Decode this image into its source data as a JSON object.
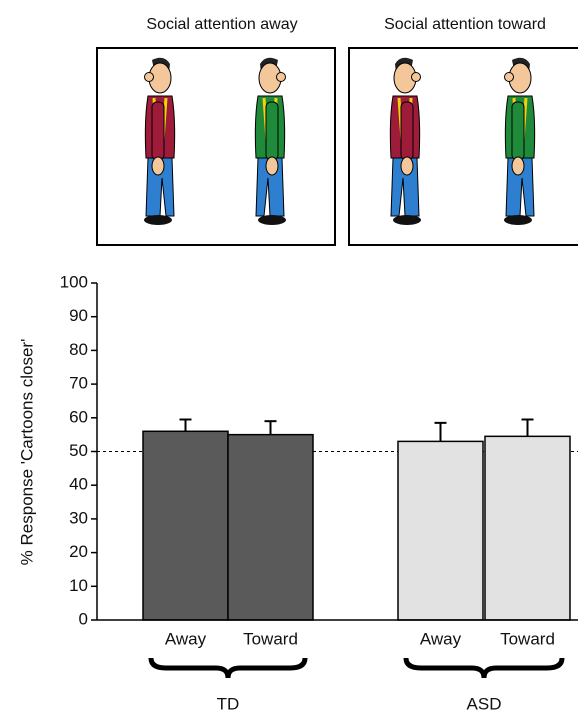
{
  "panels": [
    {
      "title": "Social attention away"
    },
    {
      "title": "Social attention toward"
    }
  ],
  "chart_data": {
    "type": "bar",
    "y_label": "% Response 'Cartoons closer'",
    "categories": [
      "Away",
      "Toward",
      "Away",
      "Toward"
    ],
    "groups": [
      {
        "label": "TD",
        "color": "#5a5a5a"
      },
      {
        "label": "ASD",
        "color": "#e2e2e2"
      }
    ],
    "values": [
      56,
      55,
      53,
      54.5
    ],
    "errors": [
      3.5,
      4,
      5.5,
      5
    ],
    "reference_line": 50,
    "ylim": [
      0,
      100
    ],
    "yticks": [
      0,
      10,
      20,
      30,
      40,
      50,
      60,
      70,
      80,
      90,
      100
    ]
  }
}
